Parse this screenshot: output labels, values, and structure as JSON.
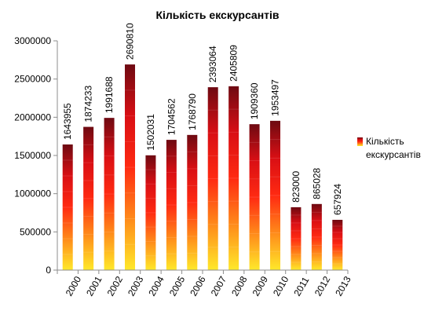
{
  "chart_data": {
    "type": "bar",
    "title": "Кількість екскурсантів",
    "categories": [
      "2000",
      "2001",
      "2002",
      "2003",
      "2004",
      "2005",
      "2006",
      "2007",
      "2008",
      "2009",
      "2010",
      "2011",
      "2012",
      "2013"
    ],
    "series": [
      {
        "name": "Кількість екскурсантів",
        "values": [
          1643955,
          1874233,
          1991688,
          2690810,
          1502031,
          1704562,
          1768790,
          2393064,
          2405809,
          1909360,
          1953497,
          823000,
          865028,
          657924
        ]
      }
    ],
    "data_labels": [
      "1643955",
      "1874233",
      "1991688",
      "2690810",
      "1502031",
      "1704562",
      "1768790",
      "2393064",
      "2405809",
      "1909360",
      "1953497",
      "823000",
      "865028",
      "657924"
    ],
    "y_ticks": [
      "0",
      "500000",
      "1000000",
      "1500000",
      "2000000",
      "2500000",
      "3000000"
    ],
    "xlabel": "",
    "ylabel": "",
    "ylim": [
      0,
      3000000
    ],
    "grid": false,
    "legend_position": "right",
    "legend_lines": [
      "Кількість",
      "екскурсантів"
    ],
    "colors": {
      "gradient_top": "#6e0a12",
      "gradient_mid_dark": "#d90f14",
      "gradient_mid": "#ff2a12",
      "gradient_orange": "#ff8a1a",
      "gradient_bottom": "#ffe92a",
      "axis": "#8c8c8c"
    }
  }
}
